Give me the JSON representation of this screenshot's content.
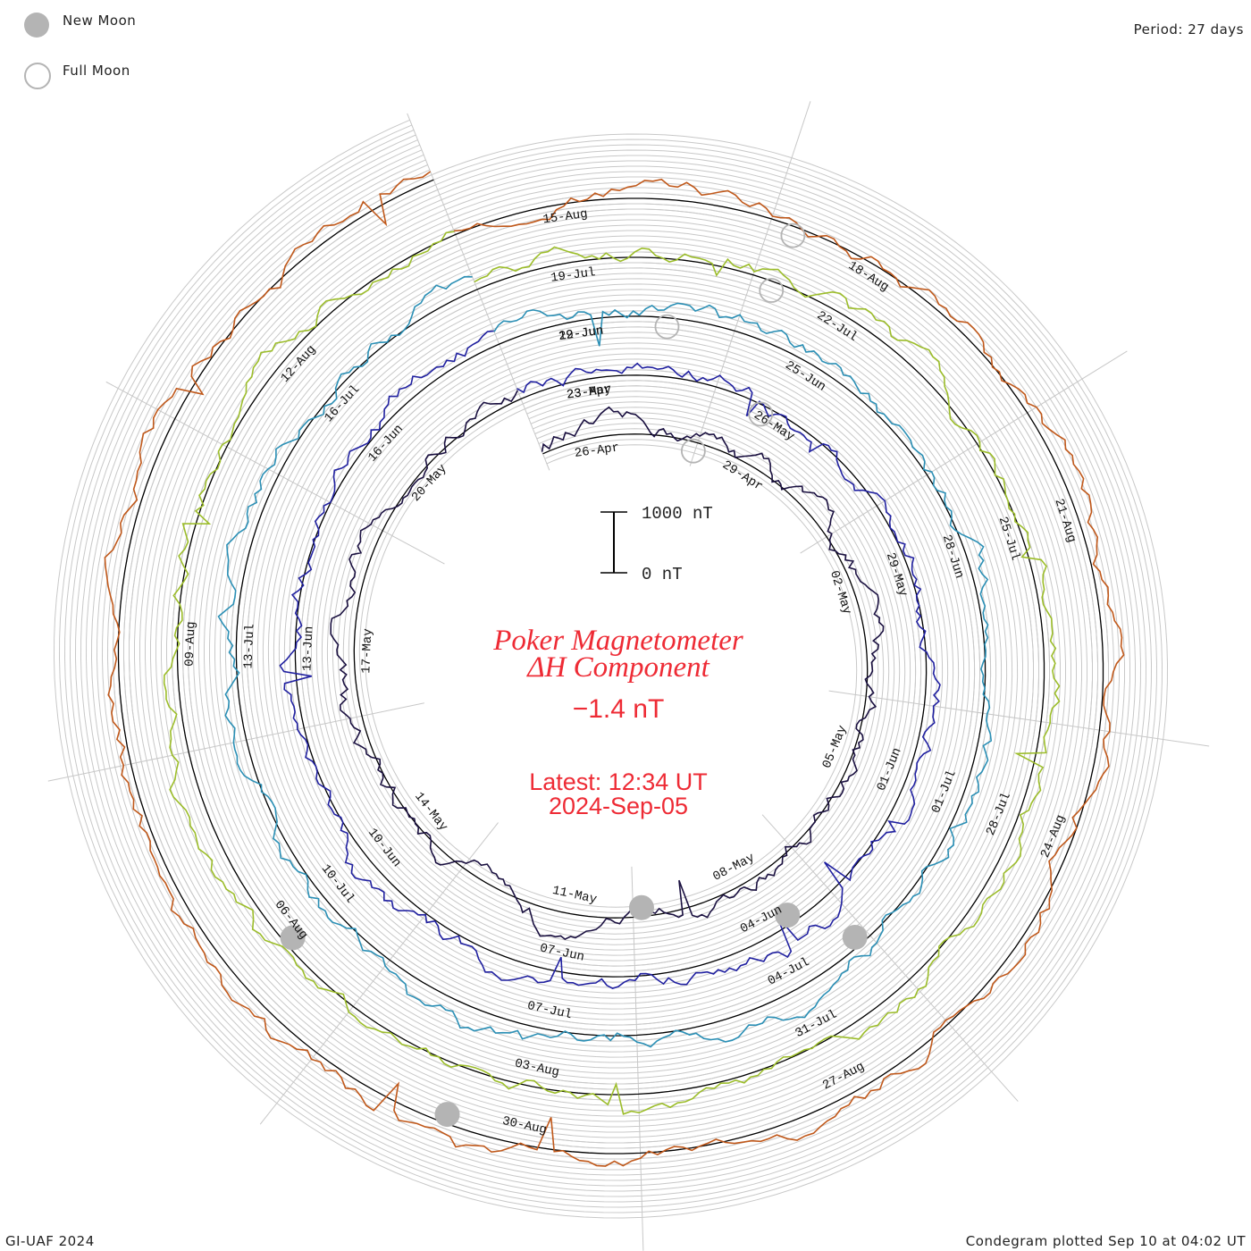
{
  "legend": {
    "new_moon_label": "New Moon",
    "full_moon_label": "Full Moon",
    "new_moon_color": "#b4b4b4",
    "full_moon_color": "#b4b4b4"
  },
  "header": {
    "period": "Period: 27 days"
  },
  "footer": {
    "credit": "GI-UAF 2024",
    "plotted": "Condegram plotted Sep 10 at 04:02 UT"
  },
  "chart_data": {
    "type": "line",
    "title": "Poker Magnetometer",
    "subtitle_symbol": "ΔH",
    "subtitle_text": " Component",
    "current_value": "−1.4 nT",
    "latest_line": "Latest: 12:34 UT",
    "latest_date": "2024-Sep-05",
    "scale_bar": {
      "top_label": "1000 nT",
      "bottom_label": "0 nT"
    },
    "period_days": 27,
    "title_color": "#ee2b35",
    "revolutions": [
      {
        "color": "#1a1040",
        "labels": [
          "26-Apr",
          "29-Apr",
          "02-May",
          "05-May",
          "08-May",
          "11-May",
          "14-May",
          "17-May",
          "20-May",
          "23-Apr"
        ]
      },
      {
        "color": "#2020a0",
        "labels": [
          "23-May",
          "26-May",
          "29-May",
          "01-Jun",
          "04-Jun",
          "07-Jun",
          "10-Jun",
          "13-Jun",
          "16-Jun",
          "19-Jun"
        ]
      },
      {
        "color": "#2a8fb5",
        "labels": [
          "22-Jun",
          "25-Jun",
          "28-Jun",
          "01-Jul",
          "04-Jul",
          "07-Jul",
          "10-Jul",
          "13-Jul",
          "16-Jul"
        ]
      },
      {
        "color": "#9cbd2a",
        "labels": [
          "19-Jul",
          "22-Jul",
          "25-Jul",
          "28-Jul",
          "31-Jul",
          "03-Aug",
          "06-Aug",
          "09-Aug",
          "12-Aug"
        ]
      },
      {
        "color": "#c0581a",
        "labels": [
          "15-Aug",
          "18-Aug",
          "21-Aug",
          "24-Aug",
          "27-Aug",
          "30-Aug"
        ]
      }
    ]
  }
}
